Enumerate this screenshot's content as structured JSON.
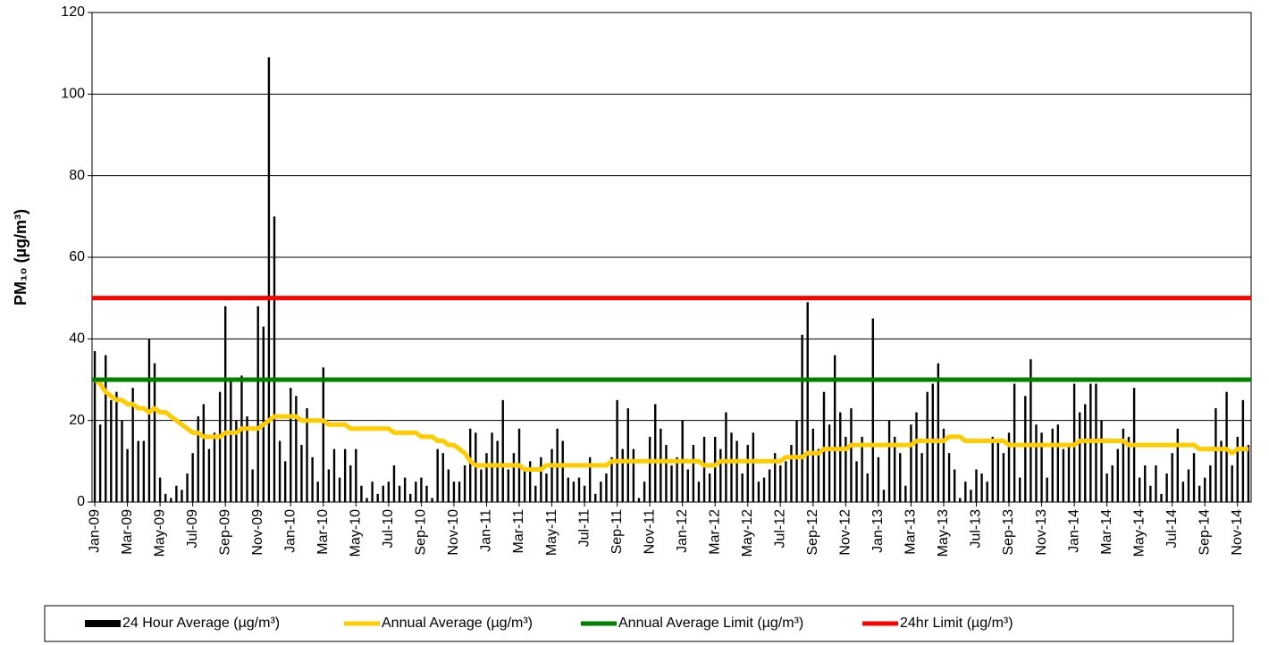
{
  "chart_data": {
    "type": "bar",
    "y_label": "PM₁₀ (µg/m³)",
    "ylim": [
      0,
      120
    ],
    "yticks": [
      0,
      20,
      40,
      60,
      80,
      100,
      120
    ],
    "grid": true,
    "legend": "bottom",
    "categories": [
      "Jan-09",
      null,
      null,
      null,
      null,
      null,
      "Mar-09",
      null,
      null,
      null,
      null,
      null,
      "May-09",
      null,
      null,
      null,
      null,
      null,
      "Jul-09",
      null,
      null,
      null,
      null,
      null,
      "Sep-09",
      null,
      null,
      null,
      null,
      null,
      "Nov-09",
      null,
      null,
      null,
      null,
      null,
      "Jan-10",
      null,
      null,
      null,
      null,
      null,
      "Mar-10",
      null,
      null,
      null,
      null,
      null,
      "May-10",
      null,
      null,
      null,
      null,
      null,
      "Jul-10",
      null,
      null,
      null,
      null,
      null,
      "Sep-10",
      null,
      null,
      null,
      null,
      null,
      "Nov-10",
      null,
      null,
      null,
      null,
      null,
      "Jan-11",
      null,
      null,
      null,
      null,
      null,
      "Mar-11",
      null,
      null,
      null,
      null,
      null,
      "May-11",
      null,
      null,
      null,
      null,
      null,
      "Jul-11",
      null,
      null,
      null,
      null,
      null,
      "Sep-11",
      null,
      null,
      null,
      null,
      null,
      "Nov-11",
      null,
      null,
      null,
      null,
      null,
      "Jan-12",
      null,
      null,
      null,
      null,
      null,
      "Mar-12",
      null,
      null,
      null,
      null,
      null,
      "May-12",
      null,
      null,
      null,
      null,
      null,
      "Jul-12",
      null,
      null,
      null,
      null,
      null,
      "Sep-12",
      null,
      null,
      null,
      null,
      null,
      "Nov-12",
      null,
      null,
      null,
      null,
      null,
      "Jan-13",
      null,
      null,
      null,
      null,
      null,
      "Mar-13",
      null,
      null,
      null,
      null,
      null,
      "May-13",
      null,
      null,
      null,
      null,
      null,
      "Jul-13",
      null,
      null,
      null,
      null,
      null,
      "Sep-13",
      null,
      null,
      null,
      null,
      null,
      "Nov-13",
      null,
      null,
      null,
      null,
      null,
      "Jan-14",
      null,
      null,
      null,
      null,
      null,
      "Mar-14",
      null,
      null,
      null,
      null,
      null,
      "May-14",
      null,
      null,
      null,
      null,
      null,
      "Jul-14",
      null,
      null,
      null,
      null,
      null,
      "Sep-14",
      null,
      null,
      null,
      null,
      null,
      "Nov-14",
      null,
      null
    ],
    "series": [
      {
        "name": "24 Hour Average (µg/m³)",
        "color": "#000000",
        "kind": "bar",
        "values": [
          37,
          19,
          36,
          25,
          27,
          20,
          13,
          28,
          15,
          15,
          40,
          34,
          6,
          2,
          1,
          4,
          3,
          7,
          12,
          21,
          24,
          13,
          17,
          27,
          48,
          30,
          20,
          31,
          21,
          8,
          48,
          43,
          109,
          70,
          15,
          10,
          28,
          26,
          14,
          23,
          11,
          5,
          33,
          8,
          13,
          6,
          13,
          9,
          13,
          4,
          1,
          5,
          2,
          4,
          5,
          9,
          4,
          6,
          2,
          5,
          6,
          4,
          1,
          13,
          12,
          8,
          5,
          5,
          9,
          18,
          17,
          8,
          12,
          17,
          15,
          25,
          8,
          12,
          18,
          8,
          10,
          4,
          11,
          7,
          13,
          18,
          15,
          6,
          5,
          6,
          4,
          11,
          2,
          5,
          7,
          11,
          25,
          13,
          23,
          13,
          1,
          5,
          16,
          24,
          18,
          14,
          9,
          11,
          20,
          8,
          14,
          5,
          16,
          7,
          16,
          13,
          22,
          17,
          15,
          7,
          14,
          17,
          5,
          6,
          8,
          12,
          9,
          10,
          14,
          20,
          41,
          49,
          18,
          13,
          27,
          19,
          36,
          22,
          16,
          23,
          10,
          16,
          7,
          45,
          11,
          3,
          20,
          16,
          12,
          4,
          19,
          22,
          12,
          27,
          29,
          34,
          18,
          12,
          8,
          1,
          5,
          3,
          8,
          7,
          5,
          16,
          15,
          12,
          17,
          29,
          6,
          26,
          35,
          19,
          17,
          6,
          18,
          19,
          13,
          14,
          29,
          22,
          24,
          29,
          29,
          20,
          7,
          9,
          13,
          18,
          16,
          28,
          6,
          9,
          4,
          9,
          2,
          7,
          12,
          18,
          5,
          8,
          12,
          4,
          6,
          9,
          23,
          15,
          27,
          9,
          16,
          25,
          14
        ]
      },
      {
        "name": "Annual Average (µg/m³)",
        "color": "#ffcc00",
        "kind": "line",
        "values": [
          30,
          29,
          27,
          26,
          25,
          25,
          24,
          24,
          23,
          23,
          22,
          23,
          22,
          22,
          21,
          20,
          19,
          18,
          17,
          17,
          16,
          16,
          16,
          16,
          17,
          17,
          17,
          18,
          18,
          18,
          18,
          19,
          20,
          21,
          21,
          21,
          21,
          21,
          20,
          20,
          20,
          20,
          20,
          19,
          19,
          19,
          19,
          18,
          18,
          18,
          18,
          18,
          18,
          18,
          18,
          17,
          17,
          17,
          17,
          17,
          16,
          16,
          16,
          15,
          15,
          14,
          14,
          13,
          12,
          10,
          9,
          9,
          9,
          9,
          9,
          9,
          9,
          9,
          9,
          8,
          8,
          8,
          8,
          9,
          9,
          9,
          9,
          9,
          9,
          9,
          9,
          9,
          9,
          9,
          9,
          10,
          10,
          10,
          10,
          10,
          10,
          10,
          10,
          10,
          10,
          10,
          10,
          10,
          10,
          10,
          10,
          10,
          9,
          9,
          9,
          10,
          10,
          10,
          10,
          10,
          10,
          10,
          10,
          10,
          10,
          10,
          10,
          11,
          11,
          11,
          11,
          12,
          12,
          12,
          13,
          13,
          13,
          13,
          13,
          14,
          14,
          14,
          14,
          14,
          14,
          14,
          14,
          14,
          14,
          14,
          14,
          15,
          15,
          15,
          15,
          15,
          15,
          16,
          16,
          16,
          15,
          15,
          15,
          15,
          15,
          15,
          15,
          15,
          14,
          14,
          14,
          14,
          14,
          14,
          14,
          14,
          14,
          14,
          14,
          14,
          14,
          15,
          15,
          15,
          15,
          15,
          15,
          15,
          15,
          15,
          14,
          14,
          14,
          14,
          14,
          14,
          14,
          14,
          14,
          14,
          14,
          14,
          14,
          13,
          13,
          13,
          13,
          13,
          13,
          12,
          13,
          13,
          13
        ]
      },
      {
        "name": "Annual Average Limit (µg/m³)",
        "color": "#008000",
        "kind": "hline",
        "value": 30
      },
      {
        "name": "24hr Limit (µg/m³)",
        "color": "#ff0000",
        "kind": "hline",
        "value": 50
      }
    ]
  }
}
